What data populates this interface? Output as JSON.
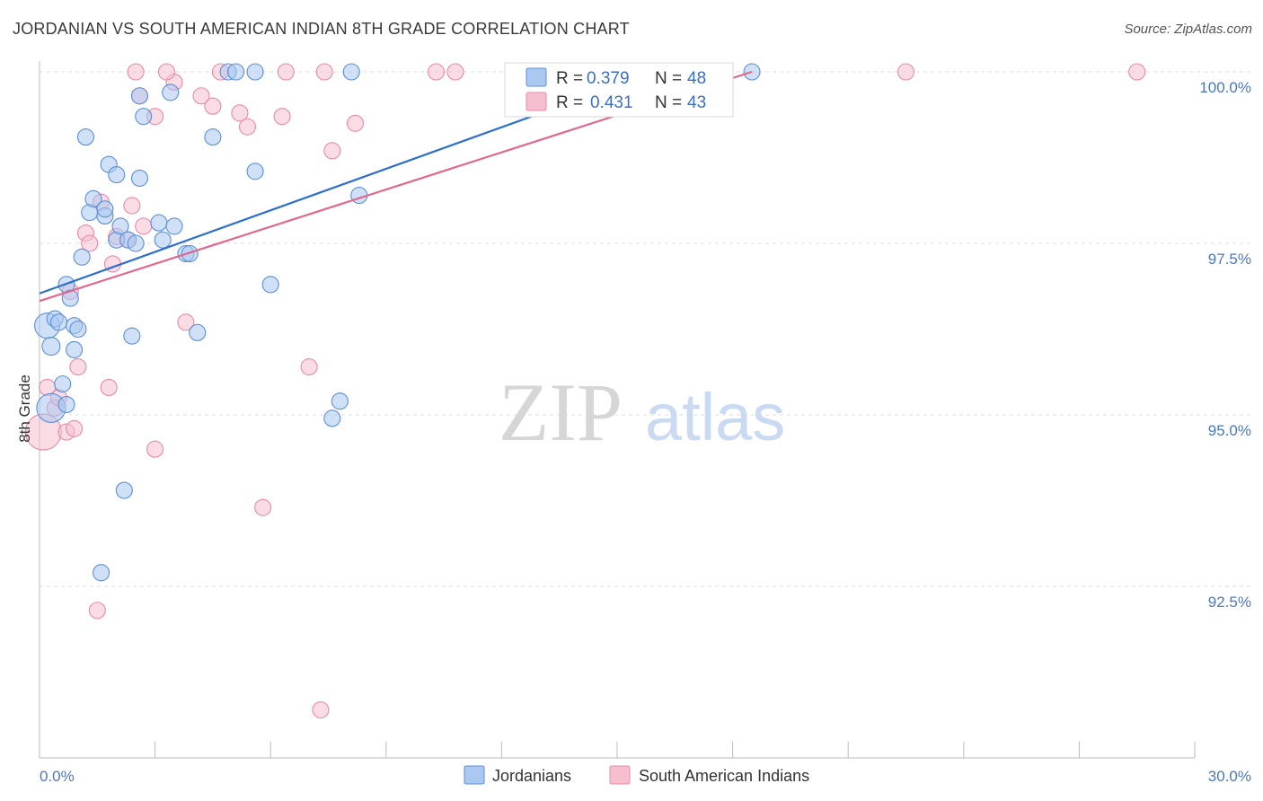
{
  "title": "JORDANIAN VS SOUTH AMERICAN INDIAN 8TH GRADE CORRELATION CHART",
  "source": "Source: ZipAtlas.com",
  "watermark": {
    "zip": "ZIP",
    "atlas": "atlas"
  },
  "colors": {
    "jordanians_fill": "#aac8f0",
    "jordanians_stroke": "#5b8fd6",
    "jordanians_line": "#2e6fcc",
    "sai_fill": "#f5bfd0",
    "sai_stroke": "#e68aa8",
    "sai_line": "#e06890",
    "grid": "#dddddd",
    "tick_text": "#4a78c0"
  },
  "legend": {
    "r_label": "R =",
    "n_label": "N =",
    "rows": [
      {
        "r": "0.379",
        "n": "48"
      },
      {
        "r": "0.431",
        "n": "43"
      }
    ]
  },
  "chart_data": {
    "type": "scatter",
    "title": "JORDANIAN VS SOUTH AMERICAN INDIAN 8TH GRADE CORRELATION CHART",
    "xlabel": "",
    "ylabel": "8th Grade",
    "xlim": [
      0,
      30
    ],
    "ylim": [
      90.3,
      100.4
    ],
    "x_tick_labels": [
      "0.0%",
      "30.0%"
    ],
    "y_ticks": [
      92.5,
      95.0,
      97.5,
      100.0
    ],
    "y_tick_labels": [
      "92.5%",
      "95.0%",
      "97.5%",
      "100.0%"
    ],
    "grid": true,
    "legend_position": "top-center",
    "series": [
      {
        "name": "Jordanians",
        "r": 0.379,
        "n": 48,
        "trend": {
          "x": [
            0.0,
            16.0
          ],
          "y": [
            96.77,
            100.0
          ]
        },
        "points": [
          [
            0.2,
            96.3,
            14
          ],
          [
            0.4,
            96.4,
            9
          ],
          [
            0.5,
            96.35,
            9
          ],
          [
            0.3,
            96.0,
            10
          ],
          [
            0.3,
            95.1,
            16
          ],
          [
            0.6,
            95.45,
            9
          ],
          [
            0.7,
            95.15,
            9
          ],
          [
            0.9,
            96.3,
            9
          ],
          [
            1.0,
            96.25,
            9
          ],
          [
            0.9,
            95.95,
            9
          ],
          [
            0.7,
            96.9,
            9
          ],
          [
            0.8,
            96.7,
            9
          ],
          [
            1.1,
            97.3,
            9
          ],
          [
            1.3,
            97.95,
            9
          ],
          [
            1.4,
            98.15,
            9
          ],
          [
            1.7,
            97.9,
            9
          ],
          [
            1.7,
            98.0,
            9
          ],
          [
            1.2,
            99.05,
            9
          ],
          [
            1.8,
            98.65,
            9
          ],
          [
            2.0,
            98.5,
            9
          ],
          [
            2.0,
            97.55,
            9
          ],
          [
            2.1,
            97.75,
            9
          ],
          [
            2.3,
            97.55,
            9
          ],
          [
            2.5,
            97.5,
            9
          ],
          [
            2.6,
            98.45,
            9
          ],
          [
            3.1,
            97.8,
            9
          ],
          [
            3.2,
            97.55,
            9
          ],
          [
            3.5,
            97.75,
            9
          ],
          [
            3.8,
            97.35,
            9
          ],
          [
            3.9,
            97.35,
            9
          ],
          [
            2.6,
            99.65,
            9
          ],
          [
            2.7,
            99.35,
            9
          ],
          [
            3.4,
            99.7,
            9
          ],
          [
            4.5,
            99.05,
            9
          ],
          [
            2.4,
            96.15,
            9
          ],
          [
            4.1,
            96.2,
            9
          ],
          [
            6.0,
            96.9,
            9
          ],
          [
            7.6,
            94.95,
            9
          ],
          [
            7.8,
            95.2,
            9
          ],
          [
            8.3,
            98.2,
            9
          ],
          [
            2.2,
            93.9,
            9
          ],
          [
            1.6,
            92.7,
            9
          ],
          [
            5.6,
            98.55,
            9
          ],
          [
            4.9,
            100.0,
            9
          ],
          [
            5.1,
            100.0,
            9
          ],
          [
            5.6,
            100.0,
            9
          ],
          [
            8.1,
            100.0,
            9
          ],
          [
            18.5,
            100.0,
            9
          ]
        ]
      },
      {
        "name": "South American Indians",
        "r": 0.431,
        "n": 43,
        "trend": {
          "x": [
            0.0,
            18.5
          ],
          "y": [
            96.66,
            100.0
          ]
        },
        "points": [
          [
            0.1,
            94.75,
            20
          ],
          [
            0.2,
            95.4,
            9
          ],
          [
            0.4,
            95.1,
            9
          ],
          [
            0.5,
            95.25,
            9
          ],
          [
            0.7,
            94.75,
            9
          ],
          [
            0.9,
            94.8,
            9
          ],
          [
            1.0,
            95.7,
            9
          ],
          [
            0.8,
            96.8,
            9
          ],
          [
            1.2,
            97.65,
            9
          ],
          [
            1.3,
            97.5,
            9
          ],
          [
            1.6,
            98.1,
            9
          ],
          [
            1.8,
            95.4,
            9
          ],
          [
            1.9,
            97.2,
            9
          ],
          [
            2.0,
            97.6,
            9
          ],
          [
            2.3,
            97.55,
            9
          ],
          [
            2.4,
            98.05,
            9
          ],
          [
            2.7,
            97.75,
            9
          ],
          [
            3.0,
            94.5,
            9
          ],
          [
            3.5,
            99.85,
            9
          ],
          [
            3.0,
            99.35,
            9
          ],
          [
            2.6,
            99.65,
            9
          ],
          [
            4.2,
            99.65,
            9
          ],
          [
            4.5,
            99.5,
            9
          ],
          [
            5.2,
            99.4,
            9
          ],
          [
            5.4,
            99.2,
            9
          ],
          [
            6.3,
            99.35,
            9
          ],
          [
            7.6,
            98.85,
            9
          ],
          [
            8.2,
            99.25,
            9
          ],
          [
            3.8,
            96.35,
            9
          ],
          [
            7.0,
            95.7,
            9
          ],
          [
            5.8,
            93.65,
            9
          ],
          [
            1.5,
            92.15,
            9
          ],
          [
            7.3,
            90.7,
            9
          ],
          [
            2.5,
            100.0,
            9
          ],
          [
            3.3,
            100.0,
            9
          ],
          [
            4.7,
            100.0,
            9
          ],
          [
            6.4,
            100.0,
            9
          ],
          [
            7.4,
            100.0,
            9
          ],
          [
            10.3,
            100.0,
            9
          ],
          [
            10.8,
            100.0,
            9
          ],
          [
            13.6,
            100.0,
            9
          ],
          [
            22.5,
            100.0,
            9
          ],
          [
            28.5,
            100.0,
            9
          ]
        ]
      }
    ]
  }
}
